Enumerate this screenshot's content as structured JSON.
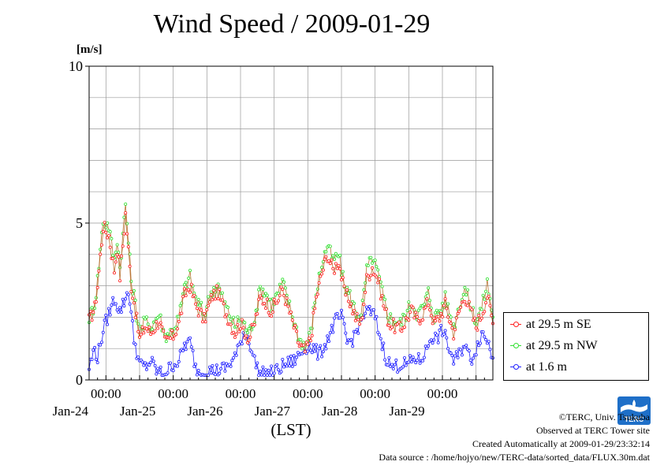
{
  "title": "Wind Speed / 2009-01-29",
  "unit_label": "[m/s]",
  "legend": [
    {
      "label": "at 29.5 m SE",
      "color": "#ff2020"
    },
    {
      "label": "at 29.5 m NW",
      "color": "#30e030"
    },
    {
      "label": "at 1.6 m",
      "color": "#2020ff"
    }
  ],
  "credits": {
    "copyright": "©TERC, Univ. Tsukuba",
    "observed": "Observed at TERC Tower site",
    "created": "Created Automatically at 2009-01-29/23:32:14",
    "source": "Data source : /home/hojyo/new/TERC-data/sorted_data/FLUX.30m.dat"
  },
  "logo_text": "TERC",
  "colors": {
    "grid": "#999999",
    "line": "#b87333"
  },
  "chart_data": {
    "type": "line",
    "title": "Wind Speed / 2009-01-29",
    "xlabel": "(LST)",
    "ylabel": "[m/s]",
    "ylim": [
      0,
      10
    ],
    "yticks": [
      0,
      5,
      10
    ],
    "xlim": [
      0,
      144
    ],
    "x_unit": "hours from 2009-01-23 18:00 LST",
    "x_ticks": [
      {
        "x": 6,
        "time": "00:00",
        "date": "Jan-24"
      },
      {
        "x": 30,
        "time": "00:00",
        "date": "Jan-25"
      },
      {
        "x": 54,
        "time": "00:00",
        "date": "Jan-26"
      },
      {
        "x": 78,
        "time": "00:00",
        "date": "Jan-27"
      },
      {
        "x": 102,
        "time": "00:00",
        "date": "Jan-28"
      },
      {
        "x": 126,
        "time": "00:00",
        "date": "Jan-29"
      }
    ],
    "grid": true,
    "legend_position": "right",
    "series": [
      {
        "name": "at 29.5 m SE",
        "color": "#ff2020",
        "anchors": [
          [
            0,
            1.9
          ],
          [
            2,
            2.3
          ],
          [
            3,
            3.0
          ],
          [
            5,
            4.9
          ],
          [
            7,
            4.6
          ],
          [
            9,
            3.5
          ],
          [
            10,
            4.2
          ],
          [
            11,
            3.3
          ],
          [
            13,
            5.3
          ],
          [
            15,
            3.0
          ],
          [
            16,
            2.5
          ],
          [
            18,
            1.3
          ],
          [
            20,
            1.7
          ],
          [
            22,
            1.5
          ],
          [
            25,
            1.9
          ],
          [
            27,
            1.2
          ],
          [
            30,
            1.4
          ],
          [
            32,
            1.8
          ],
          [
            34,
            2.7
          ],
          [
            36,
            3.0
          ],
          [
            38,
            2.4
          ],
          [
            41,
            1.9
          ],
          [
            44,
            2.7
          ],
          [
            46,
            2.8
          ],
          [
            48,
            2.3
          ],
          [
            52,
            1.5
          ],
          [
            54,
            1.8
          ],
          [
            57,
            1.3
          ],
          [
            59,
            1.8
          ],
          [
            61,
            2.6
          ],
          [
            63,
            2.5
          ],
          [
            65,
            2.2
          ],
          [
            67,
            2.5
          ],
          [
            69,
            2.9
          ],
          [
            71,
            2.3
          ],
          [
            73,
            1.7
          ],
          [
            75,
            1.1
          ],
          [
            77,
            0.9
          ],
          [
            79,
            1.3
          ],
          [
            81,
            2.6
          ],
          [
            83,
            3.4
          ],
          [
            85,
            4.0
          ],
          [
            87,
            3.5
          ],
          [
            89,
            3.8
          ],
          [
            91,
            2.8
          ],
          [
            93,
            2.5
          ],
          [
            95,
            2.0
          ],
          [
            97,
            1.8
          ],
          [
            99,
            3.2
          ],
          [
            101,
            3.6
          ],
          [
            103,
            3.2
          ],
          [
            105,
            2.4
          ],
          [
            107,
            1.8
          ],
          [
            109,
            1.7
          ],
          [
            111,
            1.6
          ],
          [
            113,
            1.9
          ],
          [
            115,
            2.2
          ],
          [
            117,
            1.9
          ],
          [
            119,
            2.1
          ],
          [
            121,
            2.5
          ],
          [
            123,
            1.8
          ],
          [
            125,
            2.0
          ],
          [
            127,
            2.4
          ],
          [
            130,
            1.5
          ],
          [
            132,
            2.2
          ],
          [
            134,
            2.7
          ],
          [
            136,
            2.2
          ],
          [
            138,
            1.7
          ],
          [
            140,
            2.1
          ],
          [
            142,
            2.7
          ],
          [
            144,
            1.8
          ]
        ]
      },
      {
        "name": "at 29.5 m NW",
        "color": "#30e030",
        "anchors": [
          [
            0,
            2.0
          ],
          [
            2,
            2.4
          ],
          [
            3,
            3.2
          ],
          [
            5,
            5.1
          ],
          [
            7,
            4.9
          ],
          [
            9,
            3.8
          ],
          [
            10,
            4.5
          ],
          [
            11,
            3.6
          ],
          [
            13,
            5.6
          ],
          [
            15,
            3.2
          ],
          [
            16,
            2.7
          ],
          [
            18,
            1.5
          ],
          [
            20,
            1.9
          ],
          [
            22,
            1.7
          ],
          [
            25,
            2.1
          ],
          [
            27,
            1.4
          ],
          [
            30,
            1.6
          ],
          [
            32,
            2.0
          ],
          [
            34,
            2.9
          ],
          [
            36,
            3.3
          ],
          [
            38,
            2.6
          ],
          [
            41,
            2.1
          ],
          [
            44,
            2.9
          ],
          [
            46,
            3.0
          ],
          [
            48,
            2.5
          ],
          [
            52,
            1.7
          ],
          [
            54,
            2.0
          ],
          [
            57,
            1.5
          ],
          [
            59,
            2.0
          ],
          [
            61,
            2.9
          ],
          [
            63,
            2.8
          ],
          [
            65,
            2.4
          ],
          [
            67,
            2.7
          ],
          [
            69,
            3.1
          ],
          [
            71,
            2.5
          ],
          [
            73,
            1.9
          ],
          [
            75,
            1.3
          ],
          [
            77,
            1.1
          ],
          [
            79,
            1.5
          ],
          [
            81,
            2.8
          ],
          [
            83,
            3.7
          ],
          [
            85,
            4.3
          ],
          [
            87,
            3.8
          ],
          [
            89,
            4.0
          ],
          [
            91,
            3.0
          ],
          [
            93,
            2.7
          ],
          [
            95,
            2.2
          ],
          [
            97,
            2.0
          ],
          [
            99,
            3.5
          ],
          [
            101,
            3.9
          ],
          [
            103,
            3.4
          ],
          [
            105,
            2.6
          ],
          [
            107,
            2.0
          ],
          [
            109,
            1.9
          ],
          [
            111,
            1.8
          ],
          [
            113,
            2.1
          ],
          [
            115,
            2.5
          ],
          [
            117,
            2.1
          ],
          [
            119,
            2.3
          ],
          [
            121,
            2.8
          ],
          [
            123,
            2.0
          ],
          [
            125,
            2.2
          ],
          [
            127,
            2.6
          ],
          [
            130,
            1.7
          ],
          [
            132,
            2.4
          ],
          [
            134,
            2.9
          ],
          [
            136,
            2.4
          ],
          [
            138,
            1.9
          ],
          [
            140,
            2.3
          ],
          [
            142,
            3.1
          ],
          [
            144,
            2.0
          ]
        ]
      },
      {
        "name": "at 1.6 m",
        "color": "#2020ff",
        "anchors": [
          [
            0,
            0.4
          ],
          [
            2,
            1.0
          ],
          [
            3,
            0.7
          ],
          [
            5,
            1.6
          ],
          [
            7,
            2.1
          ],
          [
            9,
            2.6
          ],
          [
            11,
            2.2
          ],
          [
            13,
            2.6
          ],
          [
            14,
            2.9
          ],
          [
            16,
            1.3
          ],
          [
            18,
            0.5
          ],
          [
            20,
            0.4
          ],
          [
            22,
            0.6
          ],
          [
            24,
            0.3
          ],
          [
            26,
            0.2
          ],
          [
            28,
            0.3
          ],
          [
            30,
            0.5
          ],
          [
            32,
            0.6
          ],
          [
            34,
            1.1
          ],
          [
            36,
            1.2
          ],
          [
            38,
            0.4
          ],
          [
            40,
            0.2
          ],
          [
            43,
            0.3
          ],
          [
            46,
            0.3
          ],
          [
            49,
            0.4
          ],
          [
            51,
            0.6
          ],
          [
            53,
            0.9
          ],
          [
            55,
            1.5
          ],
          [
            57,
            1.3
          ],
          [
            59,
            0.6
          ],
          [
            61,
            0.2
          ],
          [
            64,
            0.2
          ],
          [
            67,
            0.3
          ],
          [
            70,
            0.5
          ],
          [
            73,
            0.6
          ],
          [
            76,
            0.9
          ],
          [
            78,
            1.1
          ],
          [
            80,
            1.0
          ],
          [
            82,
            0.8
          ],
          [
            84,
            1.1
          ],
          [
            86,
            1.5
          ],
          [
            88,
            1.9
          ],
          [
            90,
            2.0
          ],
          [
            92,
            1.2
          ],
          [
            94,
            1.3
          ],
          [
            96,
            1.7
          ],
          [
            98,
            2.1
          ],
          [
            100,
            2.2
          ],
          [
            102,
            2.0
          ],
          [
            104,
            1.3
          ],
          [
            106,
            0.7
          ],
          [
            108,
            0.4
          ],
          [
            111,
            0.5
          ],
          [
            114,
            0.5
          ],
          [
            116,
            0.7
          ],
          [
            118,
            0.6
          ],
          [
            120,
            0.9
          ],
          [
            122,
            1.4
          ],
          [
            124,
            1.3
          ],
          [
            126,
            1.6
          ],
          [
            128,
            1.1
          ],
          [
            130,
            0.6
          ],
          [
            132,
            0.8
          ],
          [
            134,
            1.2
          ],
          [
            136,
            0.6
          ],
          [
            138,
            1.0
          ],
          [
            140,
            1.5
          ],
          [
            142,
            1.3
          ],
          [
            144,
            0.7
          ]
        ]
      }
    ]
  }
}
